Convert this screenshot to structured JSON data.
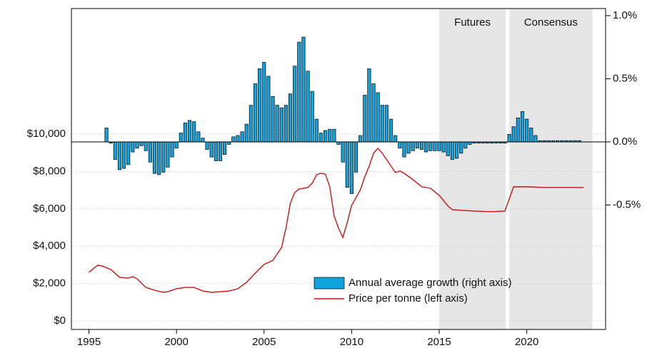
{
  "chart_data": {
    "type": "combo",
    "xlim": [
      1994,
      2024.5
    ],
    "xticks": [
      1995,
      2000,
      2005,
      2010,
      2015,
      2020
    ],
    "ylim": [
      -460,
      16720
    ],
    "yticks": [
      {
        "value": 0,
        "label": "$0"
      },
      {
        "value": 2000,
        "label": "$2,000"
      },
      {
        "value": 4000,
        "label": "$4,000"
      },
      {
        "value": 6000,
        "label": "$6,000"
      },
      {
        "value": 8000,
        "label": "$8,000"
      },
      {
        "value": 10000,
        "label": "$10,000"
      }
    ],
    "y2lim": [
      -1.486,
      1.056
    ],
    "y2ticks": [
      {
        "value": -0.5,
        "label": "-0.5%"
      },
      {
        "value": 0,
        "label": "0.0%"
      },
      {
        "value": 0.5,
        "label": "0.5%"
      },
      {
        "value": 1,
        "label": "1.0%"
      }
    ],
    "grid": true,
    "shaded_regions": [
      {
        "label": "Futures",
        "start": 2015,
        "end": 2018.8,
        "color": "#e6e6e6"
      },
      {
        "label": "Consensus",
        "start": 2019,
        "end": 2023.75,
        "color": "#e6e6e6"
      }
    ],
    "series": [
      {
        "name": "Annual average growth (right axis)",
        "type": "bar",
        "axis": "y2",
        "color": "#11a3e0",
        "x": [
          1996,
          1996.25,
          1996.5,
          1996.75,
          1997,
          1997.25,
          1997.5,
          1997.75,
          1998,
          1998.25,
          1998.5,
          1998.75,
          1999,
          1999.25,
          1999.5,
          1999.75,
          2000,
          2000.25,
          2000.5,
          2000.75,
          2001,
          2001.25,
          2001.5,
          2001.75,
          2002,
          2002.25,
          2002.5,
          2002.75,
          2003,
          2003.25,
          2003.5,
          2003.75,
          2004,
          2004.25,
          2004.5,
          2004.75,
          2005,
          2005.25,
          2005.5,
          2005.75,
          2006,
          2006.25,
          2006.5,
          2006.75,
          2007,
          2007.25,
          2007.5,
          2007.75,
          2008,
          2008.25,
          2008.5,
          2008.75,
          2009,
          2009.25,
          2009.5,
          2009.75,
          2010,
          2010.25,
          2010.5,
          2010.75,
          2011,
          2011.25,
          2011.5,
          2011.75,
          2012,
          2012.25,
          2012.5,
          2012.75,
          2013,
          2013.25,
          2013.5,
          2013.75,
          2014,
          2014.25,
          2014.5,
          2014.75,
          2015,
          2015.25,
          2015.5,
          2015.75,
          2016,
          2016.25,
          2016.5,
          2016.75,
          2017,
          2017.25,
          2017.5,
          2017.75,
          2018,
          2018.25,
          2018.5,
          2018.75,
          2019,
          2019.25,
          2019.5,
          2019.75,
          2020,
          2020.25,
          2020.5,
          2020.75,
          2021,
          2021.25,
          2021.5,
          2021.75,
          2022,
          2022.25,
          2022.5,
          2022.75,
          2023
        ],
        "values": [
          0.11,
          -0.01,
          -0.14,
          -0.22,
          -0.21,
          -0.18,
          -0.08,
          -0.05,
          -0.03,
          -0.07,
          -0.16,
          -0.25,
          -0.26,
          -0.24,
          -0.2,
          -0.12,
          -0.05,
          0.07,
          0.15,
          0.17,
          0.16,
          0.08,
          0.03,
          -0.06,
          -0.12,
          -0.15,
          -0.15,
          -0.1,
          -0.02,
          0.04,
          0.05,
          0.08,
          0.14,
          0.29,
          0.46,
          0.58,
          0.63,
          0.52,
          0.36,
          0.29,
          0.27,
          0.29,
          0.38,
          0.6,
          0.79,
          0.83,
          0.56,
          0.4,
          0.18,
          0.07,
          0.09,
          0.1,
          0.1,
          -0.02,
          -0.16,
          -0.36,
          -0.41,
          -0.24,
          0.05,
          0.37,
          0.58,
          0.46,
          0.39,
          0.29,
          0.29,
          0.18,
          0.05,
          -0.05,
          -0.12,
          -0.09,
          -0.07,
          -0.05,
          -0.06,
          -0.08,
          -0.07,
          -0.07,
          -0.07,
          -0.08,
          -0.11,
          -0.14,
          -0.13,
          -0.09,
          -0.05,
          -0.02,
          -0.01,
          -0.01,
          -0.01,
          -0.01,
          -0.01,
          -0.01,
          -0.01,
          -0.01,
          0.06,
          0.12,
          0.19,
          0.24,
          0.18,
          0.11,
          0.05,
          0.01,
          0.01,
          0.01,
          0.01,
          0.01,
          0.01,
          0.01,
          0.01,
          0.01,
          0.01
        ]
      },
      {
        "name": "Price per tonne (left axis)",
        "type": "line",
        "color": "#cc1111",
        "x": [
          1995,
          1995.5,
          1995.75,
          1996.25,
          1996.75,
          1997.25,
          1997.5,
          1997.75,
          1998.25,
          1998.75,
          1999.25,
          1999.5,
          2000,
          2000.5,
          2001,
          2001.5,
          2002,
          2002.5,
          2003,
          2003.5,
          2004,
          2004.5,
          2005,
          2005.5,
          2006,
          2006.25,
          2006.5,
          2006.75,
          2007,
          2007.5,
          2007.75,
          2008,
          2008.25,
          2008.5,
          2008.75,
          2009,
          2009.25,
          2009.5,
          2009.75,
          2010,
          2010.5,
          2010.75,
          2011,
          2011.25,
          2011.5,
          2011.75,
          2012,
          2012.5,
          2012.75,
          2013,
          2013.5,
          2014,
          2014.5,
          2015,
          2015.5,
          2015.75,
          2016.25,
          2017,
          2018,
          2018.75,
          2019.25,
          2020,
          2021,
          2022,
          2023.25
        ],
        "values": [
          2600,
          2980,
          2940,
          2750,
          2330,
          2290,
          2370,
          2250,
          1790,
          1640,
          1530,
          1560,
          1720,
          1790,
          1790,
          1600,
          1530,
          1560,
          1600,
          1720,
          2060,
          2560,
          3020,
          3240,
          3930,
          4960,
          6300,
          6870,
          7060,
          7140,
          7370,
          7820,
          7900,
          7860,
          7180,
          5610,
          4960,
          4470,
          5270,
          6180,
          7020,
          7710,
          8280,
          8970,
          9240,
          8970,
          8630,
          7940,
          8020,
          7900,
          7560,
          7180,
          7100,
          6720,
          6150,
          5950,
          5920,
          5880,
          5840,
          5880,
          7180,
          7180,
          7140,
          7140,
          7140
        ]
      }
    ]
  }
}
